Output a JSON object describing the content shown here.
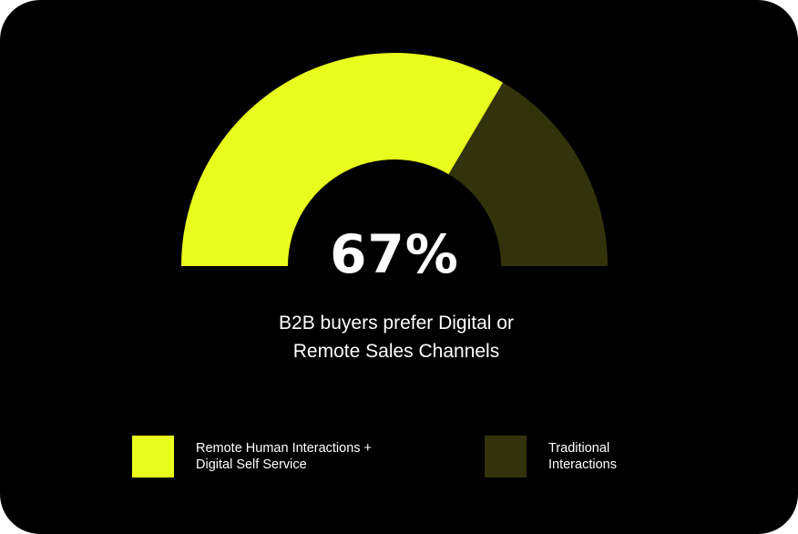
{
  "chart_data": {
    "type": "pie",
    "style": "semi-donut gauge",
    "value_label": "67%",
    "caption_lines": [
      "B2B buyers prefer Digital or",
      "Remote Sales Channels"
    ],
    "slices": [
      {
        "label_lines": [
          "Remote Human Interactions +",
          "Digital Self Service"
        ],
        "value": 67,
        "color": "#e8fc1e"
      },
      {
        "label_lines": [
          "Traditional",
          "Interactions"
        ],
        "value": 33,
        "color": "#32330a"
      }
    ],
    "legend_position": "bottom"
  },
  "colors": {
    "background": "#000000",
    "text": "#ffffff"
  }
}
